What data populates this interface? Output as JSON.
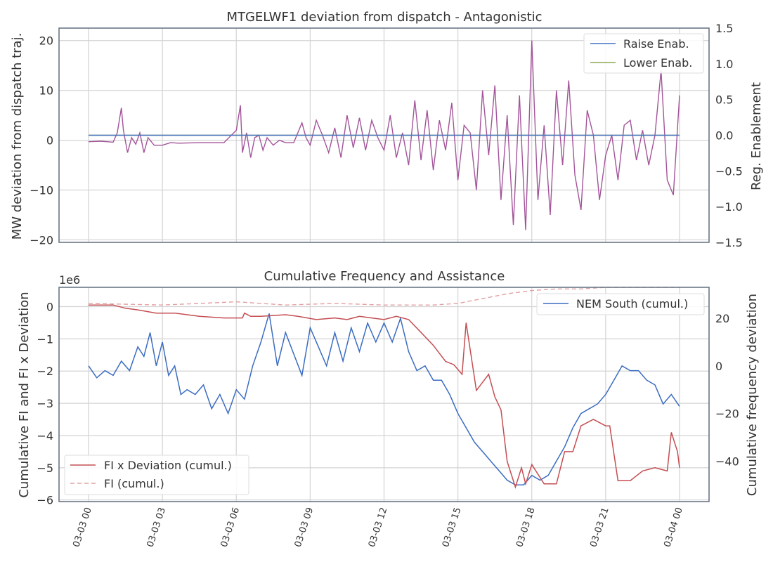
{
  "chart_data": [
    {
      "type": "line",
      "title": "MTGELWF1 deviation from dispatch - Antagonistic",
      "ylabel": "MW deviation from dispatch traj.",
      "y2label": "Reg. Enablement",
      "ylim": [
        -20.5,
        22.5
      ],
      "y2lim": [
        -1.5,
        1.5
      ],
      "xlim": [
        "2024-03-02 23:00",
        "2024-03-04 01:00"
      ],
      "yticks": [
        -20,
        -10,
        0,
        10,
        20
      ],
      "y2ticks": [
        -1.5,
        -1.0,
        -0.5,
        0.0,
        0.5,
        1.0,
        1.5
      ],
      "ytick_labels": [
        "−20",
        "−10",
        "0",
        "10",
        "20"
      ],
      "y2tick_labels": [
        "−1.5",
        "−1.0",
        "−0.5",
        "0.0",
        "0.5",
        "1.0",
        "1.5"
      ],
      "grid": true,
      "legend_position": "top-right",
      "series": [
        {
          "name": "Raise Enab.",
          "color": "#4472c4",
          "axis": "right",
          "x": [
            "03-03 00:00",
            "03-04 00:00"
          ],
          "values": [
            0.0,
            0.0
          ]
        },
        {
          "name": "Lower Enab.",
          "color": "#8aaa55",
          "axis": "right",
          "x": [
            "03-03 00:00",
            "03-04 00:00"
          ],
          "values": [
            0.0,
            0.0
          ]
        },
        {
          "color": "#a3549a",
          "axis": "left",
          "x": [
            "03-03 00:00",
            "03-03 00:30",
            "03-03 01:00",
            "03-03 01:10",
            "03-03 01:20",
            "03-03 01:25",
            "03-03 01:35",
            "03-03 01:45",
            "03-03 01:55",
            "03-03 02:05",
            "03-03 02:15",
            "03-03 02:25",
            "03-03 02:40",
            "03-03 03:00",
            "03-03 03:20",
            "03-03 03:40",
            "03-03 04:30",
            "03-03 05:30",
            "03-03 06:00",
            "03-03 06:10",
            "03-03 06:15",
            "03-03 06:25",
            "03-03 06:35",
            "03-03 06:45",
            "03-03 06:55",
            "03-03 07:05",
            "03-03 07:15",
            "03-03 07:30",
            "03-03 07:45",
            "03-03 08:00",
            "03-03 08:20",
            "03-03 08:40",
            "03-03 08:50",
            "03-03 09:00",
            "03-03 09:15",
            "03-03 09:30",
            "03-03 09:45",
            "03-03 10:00",
            "03-03 10:15",
            "03-03 10:30",
            "03-03 10:45",
            "03-03 11:00",
            "03-03 11:15",
            "03-03 11:30",
            "03-03 11:45",
            "03-03 12:00",
            "03-03 12:15",
            "03-03 12:30",
            "03-03 12:45",
            "03-03 13:00",
            "03-03 13:15",
            "03-03 13:30",
            "03-03 13:45",
            "03-03 14:00",
            "03-03 14:15",
            "03-03 14:30",
            "03-03 14:45",
            "03-03 15:00",
            "03-03 15:15",
            "03-03 15:30",
            "03-03 15:45",
            "03-03 16:00",
            "03-03 16:15",
            "03-03 16:30",
            "03-03 16:45",
            "03-03 17:00",
            "03-03 17:15",
            "03-03 17:30",
            "03-03 17:45",
            "03-03 18:00",
            "03-03 18:15",
            "03-03 18:30",
            "03-03 18:45",
            "03-03 19:00",
            "03-03 19:15",
            "03-03 19:30",
            "03-03 19:45",
            "03-03 20:00",
            "03-03 20:15",
            "03-03 20:30",
            "03-03 20:45",
            "03-03 21:00",
            "03-03 21:15",
            "03-03 21:30",
            "03-03 21:45",
            "03-03 22:00",
            "03-03 22:15",
            "03-03 22:30",
            "03-03 22:45",
            "03-03 23:00",
            "03-03 23:15",
            "03-03 23:30",
            "03-03 23:45",
            "03-04 00:00"
          ],
          "values": [
            -0.3,
            -0.2,
            -0.4,
            1.5,
            6.5,
            2.0,
            -2.5,
            0.5,
            -0.8,
            1.5,
            -2.5,
            0.5,
            -1.0,
            -1.0,
            -0.5,
            -0.6,
            -0.5,
            -0.5,
            2.0,
            7.0,
            -2.5,
            1.5,
            -3.5,
            0.5,
            1.0,
            -2.0,
            0.5,
            -1.0,
            0.0,
            -0.5,
            -0.5,
            3.5,
            0.5,
            -1.0,
            4.0,
            1.0,
            -2.5,
            2.5,
            -3.5,
            5.0,
            -1.5,
            4.5,
            -2.0,
            4.0,
            0.5,
            -2.0,
            5.0,
            -3.5,
            1.5,
            -5.0,
            8.0,
            -4.0,
            6.0,
            -6.0,
            4.0,
            -2.0,
            7.5,
            -8.0,
            3.0,
            1.5,
            -10.0,
            10.0,
            -3.0,
            11.0,
            -12.0,
            5.0,
            -17.0,
            9.0,
            -18.0,
            20.0,
            -12.0,
            3.0,
            -15.0,
            10.0,
            -5.0,
            12.0,
            -7.0,
            -14.0,
            6.0,
            1.0,
            -12.0,
            -3.0,
            1.0,
            -8.0,
            3.0,
            4.0,
            -4.0,
            2.0,
            -5.0,
            1.0,
            14.0,
            -8.0,
            -11.0,
            9.0
          ]
        }
      ]
    },
    {
      "type": "line",
      "title": "Cumulative Frequency and Assistance",
      "ylabel": "Cumulative FI and FI x Deviation",
      "y2label": "Cumulative frequency deviation",
      "offset_label": "1e6",
      "ylim": [
        -6.05,
        0.6
      ],
      "y2lim": [
        -57,
        33
      ],
      "yticks": [
        0,
        -1,
        -2,
        -3,
        -4,
        -5,
        -6
      ],
      "y2ticks": [
        20,
        0,
        -20,
        -40
      ],
      "ytick_labels": [
        "0",
        "−1",
        "−2",
        "−3",
        "−4",
        "−5",
        "−6"
      ],
      "y2tick_labels": [
        "20",
        "0",
        "−20",
        "−40"
      ],
      "xticks": [
        "03-03 00",
        "03-03 03",
        "03-03 06",
        "03-03 09",
        "03-03 12",
        "03-03 15",
        "03-03 18",
        "03-03 21",
        "03-04 00"
      ],
      "grid": true,
      "legend_position": "top-right and bottom-left",
      "series": [
        {
          "name": "FI x Deviation (cumul.)",
          "color": "#c44e52",
          "axis": "left",
          "x": [
            "03-03 00:00",
            "03-03 01:00",
            "03-03 01:30",
            "03-03 02:00",
            "03-03 02:45",
            "03-03 03:30",
            "03-03 04:30",
            "03-03 05:30",
            "03-03 06:15",
            "03-03 06:20",
            "03-03 06:35",
            "03-03 07:00",
            "03-03 08:00",
            "03-03 08:30",
            "03-03 09:15",
            "03-03 10:00",
            "03-03 10:30",
            "03-03 11:00",
            "03-03 11:30",
            "03-03 12:00",
            "03-03 12:30",
            "03-03 13:00",
            "03-03 13:30",
            "03-03 14:00",
            "03-03 14:30",
            "03-03 14:50",
            "03-03 15:10",
            "03-03 15:20",
            "03-03 15:45",
            "03-03 16:15",
            "03-03 16:30",
            "03-03 16:45",
            "03-03 17:00",
            "03-03 17:20",
            "03-03 17:35",
            "03-03 17:45",
            "03-03 18:00",
            "03-03 18:30",
            "03-03 19:00",
            "03-03 19:20",
            "03-03 19:40",
            "03-03 20:00",
            "03-03 20:30",
            "03-03 21:00",
            "03-03 21:10",
            "03-03 21:30",
            "03-03 22:00",
            "03-03 22:30",
            "03-03 23:00",
            "03-03 23:30",
            "03-03 23:40",
            "03-03 23:55",
            "03-04 00:00"
          ],
          "values": [
            0.05,
            0.05,
            -0.05,
            -0.1,
            -0.2,
            -0.2,
            -0.3,
            -0.35,
            -0.35,
            -0.2,
            -0.3,
            -0.3,
            -0.25,
            -0.3,
            -0.4,
            -0.35,
            -0.4,
            -0.3,
            -0.35,
            -0.4,
            -0.3,
            -0.4,
            -0.8,
            -1.2,
            -1.7,
            -1.8,
            -2.1,
            -0.5,
            -2.6,
            -2.1,
            -2.8,
            -3.2,
            -4.8,
            -5.6,
            -5.0,
            -5.5,
            -4.9,
            -5.5,
            -5.5,
            -4.5,
            -4.5,
            -3.7,
            -3.5,
            -3.7,
            -3.7,
            -5.4,
            -5.4,
            -5.1,
            -5.0,
            -5.1,
            -3.9,
            -4.5,
            -5.0
          ]
        },
        {
          "name": "FI (cumul.)",
          "color": "#e3a0a2",
          "axis": "left",
          "dashed": true,
          "x": [
            "03-03 00:00",
            "03-03 03:00",
            "03-03 06:00",
            "03-03 08:00",
            "03-03 10:00",
            "03-03 12:00",
            "03-03 14:00",
            "03-03 15:00",
            "03-03 16:00",
            "03-03 17:00",
            "03-03 18:00",
            "03-03 19:00",
            "03-03 20:00",
            "03-03 21:00",
            "03-03 22:00",
            "03-03 23:00",
            "03-04 00:00"
          ],
          "values": [
            0.1,
            0.05,
            0.15,
            0.05,
            0.1,
            0.05,
            0.05,
            0.1,
            0.25,
            0.4,
            0.5,
            0.55,
            0.55,
            0.6,
            0.6,
            0.6,
            0.6
          ]
        },
        {
          "name": "NEM South (cumul.)",
          "color": "#3b6cc1",
          "axis": "right",
          "x": [
            "03-03 00:00",
            "03-03 00:20",
            "03-03 00:40",
            "03-03 01:00",
            "03-03 01:20",
            "03-03 01:40",
            "03-03 02:00",
            "03-03 02:15",
            "03-03 02:30",
            "03-03 02:45",
            "03-03 03:00",
            "03-03 03:15",
            "03-03 03:30",
            "03-03 03:45",
            "03-03 04:00",
            "03-03 04:20",
            "03-03 04:40",
            "03-03 05:00",
            "03-03 05:20",
            "03-03 05:40",
            "03-03 06:00",
            "03-03 06:20",
            "03-03 06:40",
            "03-03 07:00",
            "03-03 07:20",
            "03-03 07:40",
            "03-03 08:00",
            "03-03 08:20",
            "03-03 08:40",
            "03-03 09:00",
            "03-03 09:20",
            "03-03 09:40",
            "03-03 10:00",
            "03-03 10:20",
            "03-03 10:40",
            "03-03 11:00",
            "03-03 11:20",
            "03-03 11:40",
            "03-03 12:00",
            "03-03 12:20",
            "03-03 12:40",
            "03-03 13:00",
            "03-03 13:20",
            "03-03 13:40",
            "03-03 14:00",
            "03-03 14:20",
            "03-03 14:40",
            "03-03 15:00",
            "03-03 15:20",
            "03-03 15:40",
            "03-03 16:00",
            "03-03 16:20",
            "03-03 16:40",
            "03-03 17:00",
            "03-03 17:20",
            "03-03 17:40",
            "03-03 18:00",
            "03-03 18:20",
            "03-03 18:40",
            "03-03 19:00",
            "03-03 19:20",
            "03-03 19:40",
            "03-03 20:00",
            "03-03 20:20",
            "03-03 20:40",
            "03-03 21:00",
            "03-03 21:20",
            "03-03 21:40",
            "03-03 22:00",
            "03-03 22:20",
            "03-03 22:40",
            "03-03 23:00",
            "03-03 23:20",
            "03-03 23:40",
            "03-04 00:00"
          ],
          "values": [
            0,
            -5,
            -2,
            -4,
            2,
            -2,
            8,
            4,
            14,
            0,
            10,
            -4,
            0,
            -12,
            -10,
            -12,
            -8,
            -18,
            -12,
            -20,
            -10,
            -14,
            0,
            10,
            22,
            0,
            14,
            5,
            -4,
            16,
            8,
            0,
            14,
            2,
            16,
            6,
            18,
            10,
            18,
            10,
            20,
            6,
            -2,
            0,
            -6,
            -6,
            -12,
            -20,
            -26,
            -32,
            -36,
            -40,
            -44,
            -48,
            -50,
            -50,
            -46,
            -48,
            -46,
            -40,
            -34,
            -26,
            -20,
            -18,
            -16,
            -12,
            -6,
            0,
            -2,
            -2,
            -6,
            -8,
            -16,
            -12,
            -17
          ]
        }
      ]
    }
  ]
}
